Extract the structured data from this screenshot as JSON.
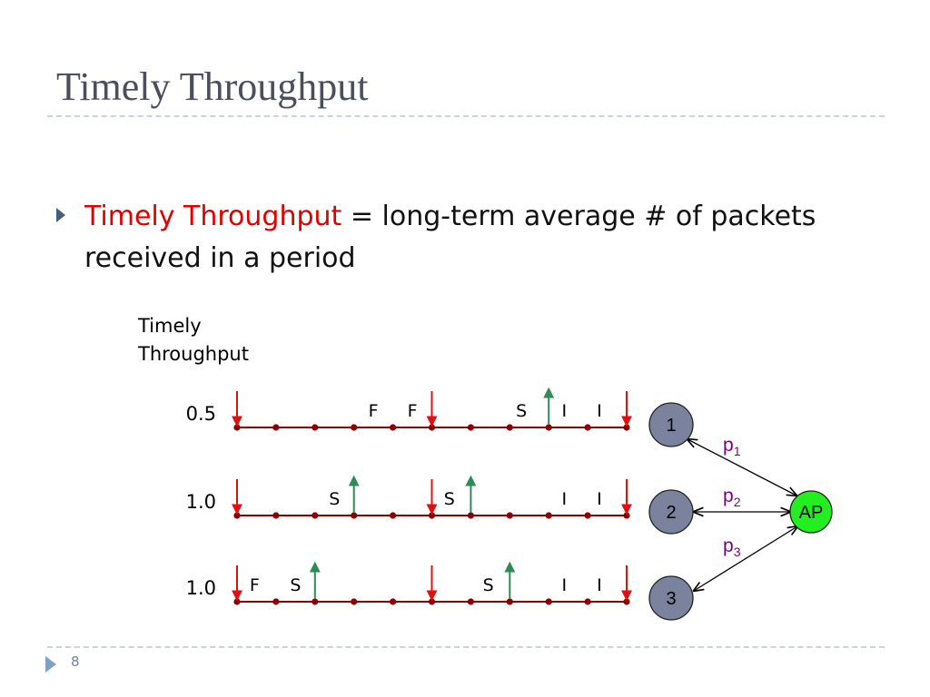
{
  "slide": {
    "title": "Timely Throughput",
    "bullet": {
      "term": "Timely Throughput",
      "definition": "= long-term average # of packets received in a period"
    },
    "page_number": "8"
  },
  "diagram": {
    "y_axis_label": [
      "Timely",
      "Throughput"
    ],
    "rows": [
      {
        "value": "0.5",
        "events": [
          {
            "slot": 0,
            "kind": "arrival"
          },
          {
            "slot": 3.5,
            "kind": "label",
            "text": "F"
          },
          {
            "slot": 4.5,
            "kind": "label",
            "text": "F"
          },
          {
            "slot": 5,
            "kind": "arrival"
          },
          {
            "slot": 7.3,
            "kind": "label",
            "text": "S"
          },
          {
            "slot": 8,
            "kind": "success"
          },
          {
            "slot": 8.4,
            "kind": "label",
            "text": "I"
          },
          {
            "slot": 9.3,
            "kind": "label",
            "text": "I"
          },
          {
            "slot": 10,
            "kind": "arrival"
          }
        ]
      },
      {
        "value": "1.0",
        "events": [
          {
            "slot": 0,
            "kind": "arrival"
          },
          {
            "slot": 2.5,
            "kind": "label",
            "text": "S"
          },
          {
            "slot": 3,
            "kind": "success"
          },
          {
            "slot": 5,
            "kind": "arrival"
          },
          {
            "slot": 5.45,
            "kind": "label",
            "text": "S"
          },
          {
            "slot": 6,
            "kind": "success"
          },
          {
            "slot": 8.4,
            "kind": "label",
            "text": "I"
          },
          {
            "slot": 9.3,
            "kind": "label",
            "text": "I"
          },
          {
            "slot": 10,
            "kind": "arrival"
          }
        ]
      },
      {
        "value": "1.0",
        "events": [
          {
            "slot": 0,
            "kind": "arrival"
          },
          {
            "slot": 0.45,
            "kind": "label",
            "text": "F"
          },
          {
            "slot": 1.5,
            "kind": "label",
            "text": "S"
          },
          {
            "slot": 2,
            "kind": "success"
          },
          {
            "slot": 5,
            "kind": "arrival"
          },
          {
            "slot": 6.45,
            "kind": "label",
            "text": "S"
          },
          {
            "slot": 7,
            "kind": "success"
          },
          {
            "slot": 8.4,
            "kind": "label",
            "text": "I"
          },
          {
            "slot": 9.3,
            "kind": "label",
            "text": "I"
          },
          {
            "slot": 10,
            "kind": "arrival"
          }
        ]
      }
    ],
    "slot_count": 10,
    "clients": [
      "1",
      "2",
      "3"
    ],
    "access_point": "AP",
    "probabilities": [
      {
        "base": "p",
        "sub": "1"
      },
      {
        "base": "p",
        "sub": "2"
      },
      {
        "base": "p",
        "sub": "3"
      }
    ],
    "colors": {
      "arrival": "#e01010",
      "success": "#2e8b57",
      "timeline": "#8b0000",
      "client_fill": "#7a829e",
      "ap_fill": "#22ee22",
      "probability": "#7b007b"
    }
  }
}
